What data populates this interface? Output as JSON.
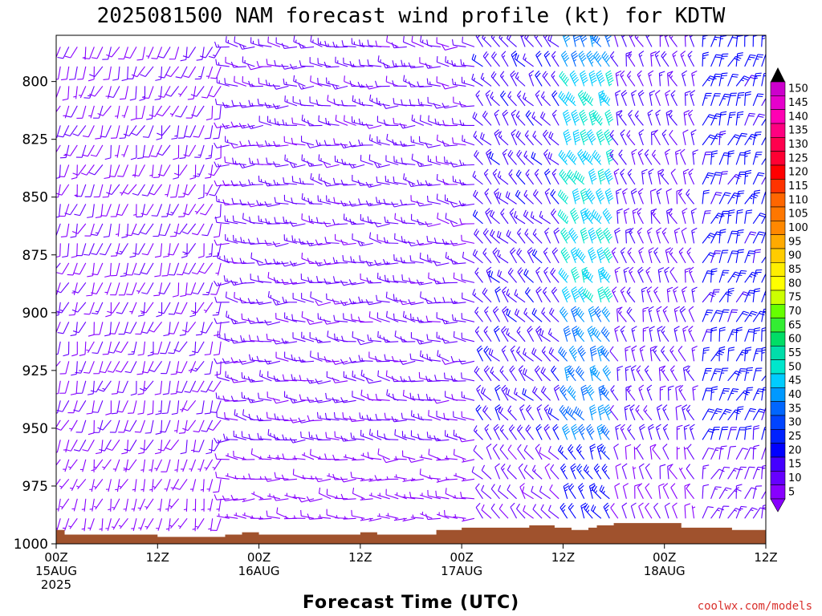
{
  "chart_data": {
    "type": "wind-barb-timeheight",
    "title": "2025081500 NAM forecast wind profile (kt) for KDTW",
    "xlabel": "Forecast Time (UTC)",
    "ylabel": "",
    "credit": "coolwx.com/models",
    "y_axis": {
      "range": [
        1000,
        780
      ],
      "ticks": [
        "800",
        "825",
        "850",
        "875",
        "900",
        "925",
        "950",
        "975",
        "1000"
      ],
      "tick_values": [
        800,
        825,
        850,
        875,
        900,
        925,
        950,
        975,
        1000
      ]
    },
    "x_axis": {
      "range_hours": [
        0,
        84
      ],
      "ticks": [
        {
          "hour": 0,
          "lines": [
            "00Z",
            "15AUG",
            "2025"
          ]
        },
        {
          "hour": 12,
          "lines": [
            "12Z"
          ]
        },
        {
          "hour": 24,
          "lines": [
            "00Z",
            "16AUG"
          ]
        },
        {
          "hour": 36,
          "lines": [
            "12Z"
          ]
        },
        {
          "hour": 48,
          "lines": [
            "00Z",
            "17AUG"
          ]
        },
        {
          "hour": 60,
          "lines": [
            "12Z"
          ]
        },
        {
          "hour": 72,
          "lines": [
            "00Z",
            "18AUG"
          ]
        },
        {
          "hour": 84,
          "lines": [
            "12Z"
          ]
        }
      ]
    },
    "colorbar": {
      "units": "kt",
      "values": [
        150,
        145,
        140,
        135,
        130,
        125,
        120,
        115,
        110,
        105,
        100,
        95,
        90,
        85,
        80,
        75,
        70,
        65,
        60,
        55,
        50,
        45,
        40,
        35,
        30,
        25,
        20,
        15,
        10,
        5
      ],
      "colors": [
        "#cc00cc",
        "#e600cc",
        "#ff00b3",
        "#ff0080",
        "#ff004d",
        "#ff0033",
        "#ff0000",
        "#ff3300",
        "#ff6600",
        "#ff7700",
        "#ff8800",
        "#ffaa00",
        "#ffcc00",
        "#ffee00",
        "#ffff00",
        "#ccff00",
        "#66ff00",
        "#33ee33",
        "#00dd66",
        "#00ddaa",
        "#00e6cc",
        "#00ccff",
        "#0099ff",
        "#0066ff",
        "#0044ff",
        "#0022ff",
        "#0000ff",
        "#4400ff",
        "#6600ff",
        "#8800ff"
      ],
      "top_arrow_color": "#000000",
      "bottom_arrow_color": "#8800ff"
    },
    "terrain_color": "#a0522d",
    "surface_pressure": [
      {
        "hour": 0,
        "p": 994
      },
      {
        "hour": 1,
        "p": 996
      },
      {
        "hour": 4,
        "p": 996
      },
      {
        "hour": 12,
        "p": 997
      },
      {
        "hour": 16,
        "p": 997
      },
      {
        "hour": 20,
        "p": 996
      },
      {
        "hour": 22,
        "p": 995
      },
      {
        "hour": 24,
        "p": 996
      },
      {
        "hour": 34,
        "p": 996
      },
      {
        "hour": 36,
        "p": 995
      },
      {
        "hour": 38,
        "p": 996
      },
      {
        "hour": 45,
        "p": 994
      },
      {
        "hour": 48,
        "p": 993
      },
      {
        "hour": 54,
        "p": 993
      },
      {
        "hour": 56,
        "p": 992
      },
      {
        "hour": 59,
        "p": 993
      },
      {
        "hour": 61,
        "p": 994
      },
      {
        "hour": 63,
        "p": 993
      },
      {
        "hour": 64,
        "p": 992
      },
      {
        "hour": 66,
        "p": 991
      },
      {
        "hour": 72,
        "p": 991
      },
      {
        "hour": 74,
        "p": 993
      },
      {
        "hour": 80,
        "p": 994
      },
      {
        "hour": 84,
        "p": 995
      }
    ],
    "wind_regimes": [
      {
        "hours": [
          0,
          20
        ],
        "dir_deg": 200,
        "speed_kt": 10
      },
      {
        "hours": [
          20,
          50
        ],
        "dir_deg": 275,
        "speed_kt": 12
      },
      {
        "hours": [
          50,
          60
        ],
        "dir_deg": 320,
        "speed_kt": 18
      },
      {
        "hours": [
          60,
          66
        ],
        "dir_deg": 330,
        "speed_kt": 40,
        "note": "core near 800-900 hPa"
      },
      {
        "hours": [
          66,
          76
        ],
        "dir_deg": 340,
        "speed_kt": 15
      },
      {
        "hours": [
          76,
          84
        ],
        "dir_deg": 20,
        "speed_kt": 22
      }
    ]
  }
}
